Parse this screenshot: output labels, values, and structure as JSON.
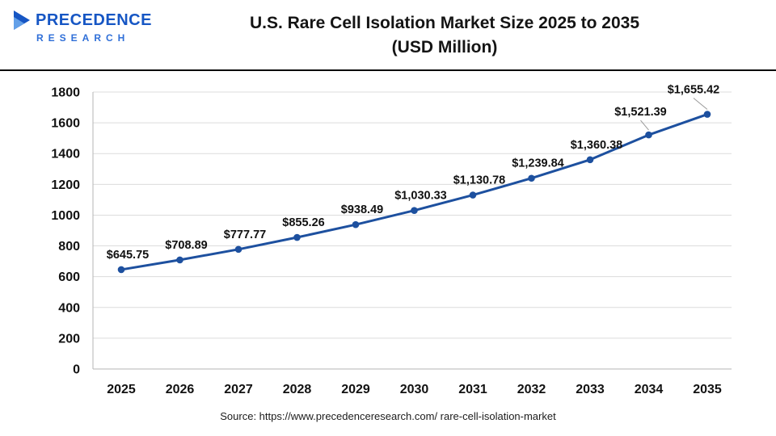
{
  "header": {
    "logo_line1": "PRECEDENCE",
    "logo_line2": "RESEARCH",
    "title_line1": "U.S. Rare Cell Isolation Market Size 2025 to 2035",
    "title_line2": "(USD Million)"
  },
  "chart_data": {
    "type": "line",
    "title": "U.S. Rare Cell Isolation Market Size 2025 to 2035 (USD Million)",
    "categories": [
      "2025",
      "2026",
      "2027",
      "2028",
      "2029",
      "2030",
      "2031",
      "2032",
      "2033",
      "2034",
      "2035"
    ],
    "values": [
      645.75,
      708.89,
      777.77,
      855.26,
      938.49,
      1030.33,
      1130.78,
      1239.84,
      1360.38,
      1521.39,
      1655.42
    ],
    "value_labels": [
      "$645.75",
      "$708.89",
      "$777.77",
      "$855.26",
      "$938.49",
      "$1,030.33",
      "$1,130.78",
      "$1,239.84",
      "$1,360.38",
      "$1,521.39",
      "$1,655.42"
    ],
    "xlabel": "",
    "ylabel": "",
    "ylim": [
      0,
      1800
    ],
    "yticks": [
      0,
      200,
      400,
      600,
      800,
      1000,
      1200,
      1400,
      1600,
      1800
    ],
    "grid": true,
    "legend": false,
    "line_color": "#1d509f",
    "marker_color": "#1d509f",
    "grid_color": "#dcdcdc",
    "axis_color": "#b5b5b5"
  },
  "footer": {
    "source": "Source: https://www.precedenceresearch.com/ rare-cell-isolation-market"
  }
}
